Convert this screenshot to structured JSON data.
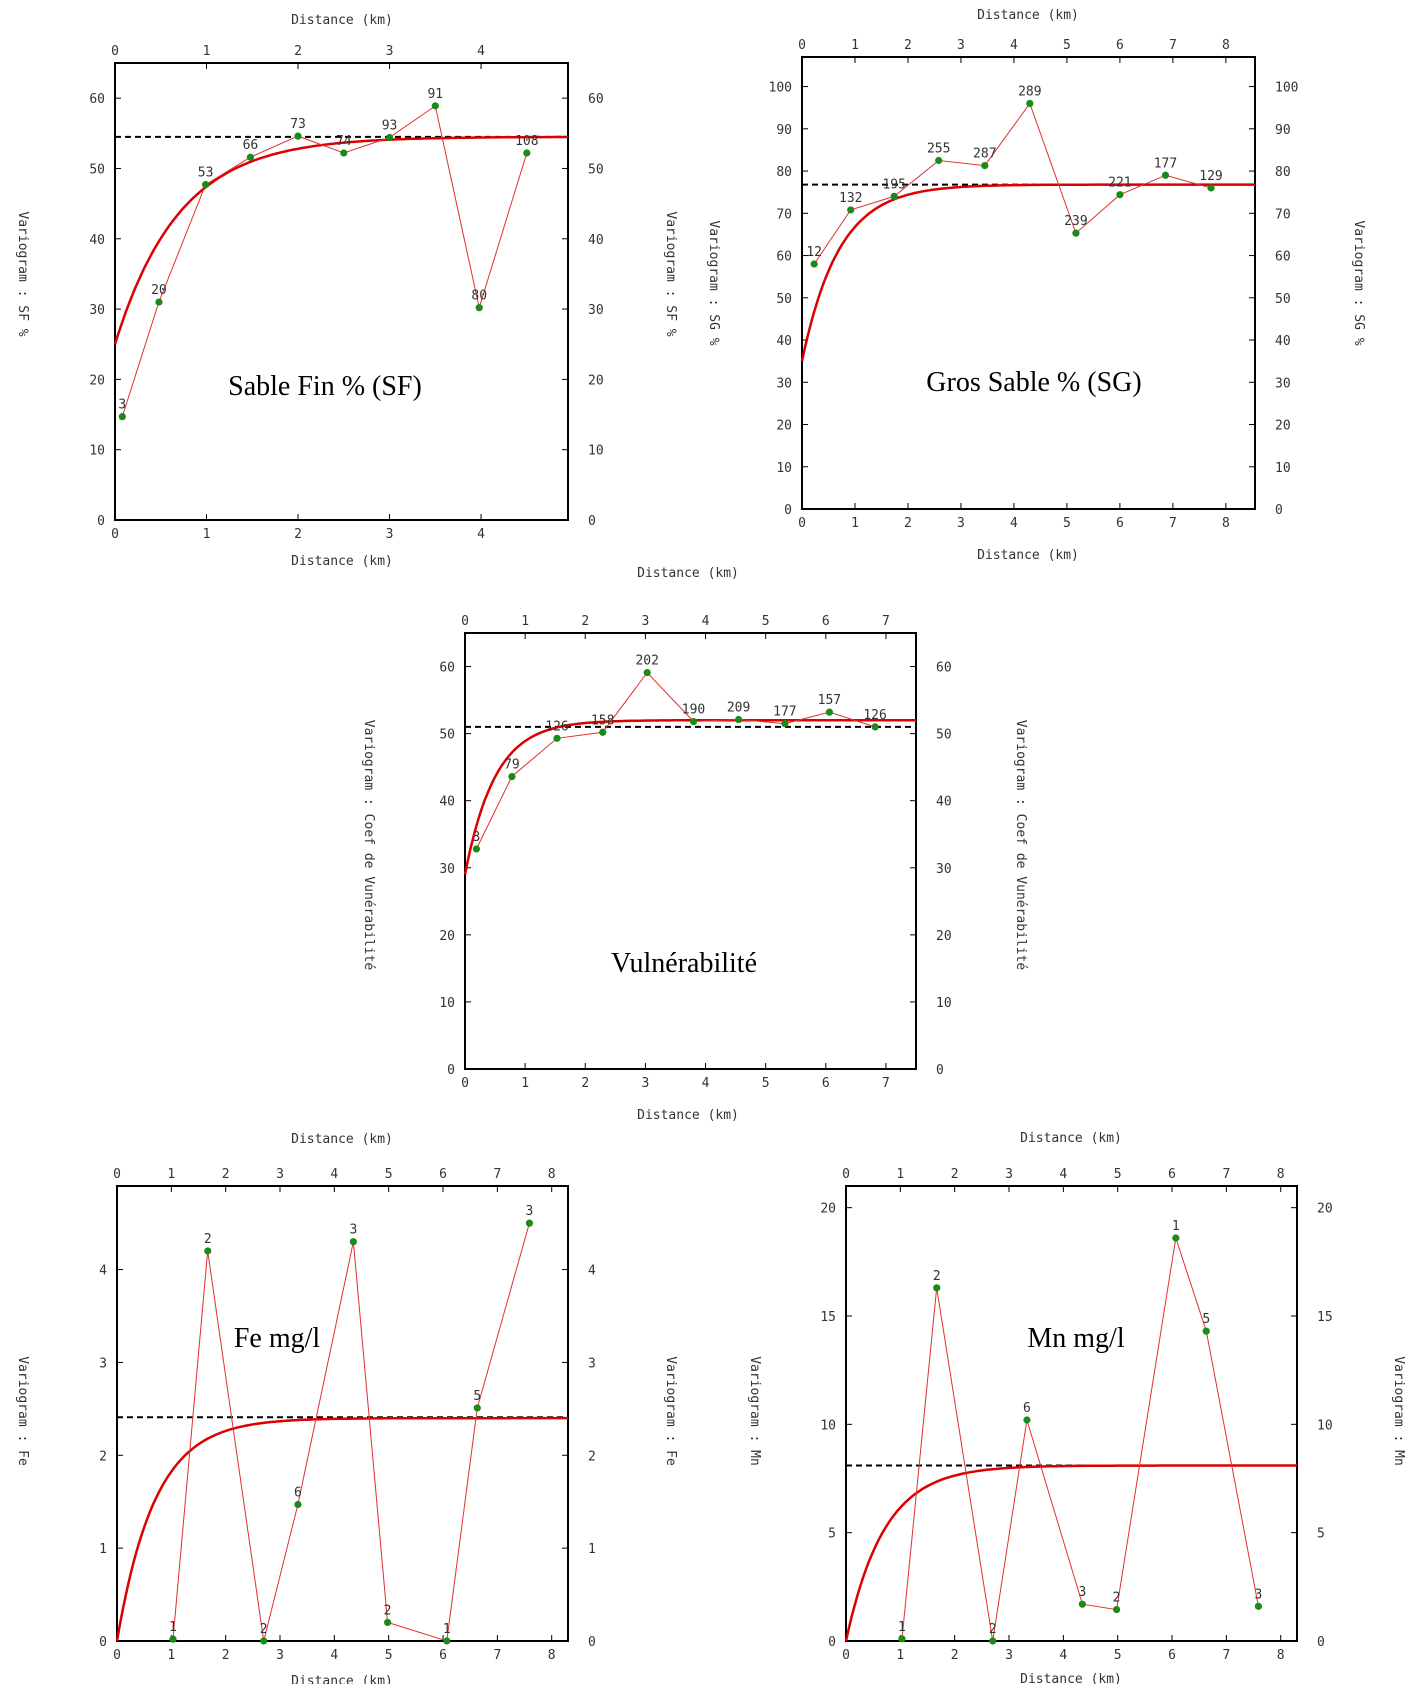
{
  "chart_data": [
    {
      "type": "scatter",
      "title": "Sable Fin % (SF)",
      "xlabel": "Distance (km)",
      "ylabel": "Variogram : SF %",
      "xlim": [
        0,
        4.95
      ],
      "ylim": [
        0,
        65
      ],
      "x_ticks": [
        0,
        1,
        2,
        3,
        4
      ],
      "y_ticks": [
        0,
        10,
        20,
        30,
        40,
        50,
        60
      ],
      "sill": 54.5,
      "model": {
        "nugget": 25,
        "sill": 54.5,
        "range": 0.7
      },
      "points": [
        {
          "x": 0.08,
          "y": 14.7,
          "label": "3"
        },
        {
          "x": 0.48,
          "y": 31.0,
          "label": "20"
        },
        {
          "x": 0.99,
          "y": 47.7,
          "label": "53"
        },
        {
          "x": 1.48,
          "y": 51.6,
          "label": "66"
        },
        {
          "x": 2.0,
          "y": 54.6,
          "label": "73"
        },
        {
          "x": 2.5,
          "y": 52.2,
          "label": "74"
        },
        {
          "x": 3.0,
          "y": 54.4,
          "label": "93"
        },
        {
          "x": 3.5,
          "y": 58.9,
          "label": "91"
        },
        {
          "x": 3.98,
          "y": 30.2,
          "label": "80"
        },
        {
          "x": 4.5,
          "y": 52.2,
          "label": "108"
        }
      ]
    },
    {
      "type": "scatter",
      "title": "Gros Sable % (SG)",
      "xlabel": "Distance (km)",
      "ylabel": "Variogram : SG %",
      "xlim": [
        0,
        8.55
      ],
      "ylim": [
        0,
        107
      ],
      "x_ticks": [
        0,
        1,
        2,
        3,
        4,
        5,
        6,
        7,
        8
      ],
      "y_ticks": [
        0,
        10,
        20,
        30,
        40,
        50,
        60,
        70,
        80,
        90,
        100
      ],
      "sill": 76.8,
      "model": {
        "nugget": 35,
        "sill": 76.8,
        "range": 0.7
      },
      "points": [
        {
          "x": 0.23,
          "y": 58.0,
          "label": "12"
        },
        {
          "x": 0.92,
          "y": 70.8,
          "label": "132"
        },
        {
          "x": 1.74,
          "y": 74.0,
          "label": "195"
        },
        {
          "x": 2.58,
          "y": 82.5,
          "label": "255"
        },
        {
          "x": 3.45,
          "y": 81.3,
          "label": "287"
        },
        {
          "x": 4.3,
          "y": 96.0,
          "label": "289"
        },
        {
          "x": 5.17,
          "y": 65.3,
          "label": "239"
        },
        {
          "x": 6.0,
          "y": 74.4,
          "label": "221"
        },
        {
          "x": 6.86,
          "y": 79.0,
          "label": "177"
        },
        {
          "x": 7.72,
          "y": 76.0,
          "label": "129"
        }
      ]
    },
    {
      "type": "scatter",
      "title": "Vulnérabilité",
      "xlabel": "Distance (km)",
      "ylabel": "Variogram : Coef de Vunérabilité",
      "xlim": [
        0,
        7.5
      ],
      "ylim": [
        0,
        65
      ],
      "x_ticks": [
        0,
        1,
        2,
        3,
        4,
        5,
        6,
        7
      ],
      "y_ticks": [
        0,
        10,
        20,
        30,
        40,
        50,
        60
      ],
      "sill": 51.0,
      "model": {
        "nugget": 29,
        "sill": 52.0,
        "range": 0.5
      },
      "points": [
        {
          "x": 0.19,
          "y": 32.8,
          "label": "3"
        },
        {
          "x": 0.78,
          "y": 43.6,
          "label": "79"
        },
        {
          "x": 1.53,
          "y": 49.3,
          "label": "126"
        },
        {
          "x": 2.29,
          "y": 50.2,
          "label": "158"
        },
        {
          "x": 3.03,
          "y": 59.1,
          "label": "202"
        },
        {
          "x": 3.8,
          "y": 51.8,
          "label": "190"
        },
        {
          "x": 4.55,
          "y": 52.1,
          "label": "209"
        },
        {
          "x": 5.32,
          "y": 51.5,
          "label": "177"
        },
        {
          "x": 6.06,
          "y": 53.2,
          "label": "157"
        },
        {
          "x": 6.82,
          "y": 51.0,
          "label": "126"
        }
      ]
    },
    {
      "type": "scatter",
      "title": "Fe mg/l",
      "xlabel": "Distance (km)",
      "ylabel": "Variogram : Fe",
      "xlim": [
        0,
        8.3
      ],
      "ylim": [
        0,
        4.9
      ],
      "x_ticks": [
        0,
        1,
        2,
        3,
        4,
        5,
        6,
        7,
        8
      ],
      "y_ticks": [
        0,
        1,
        2,
        3,
        4
      ],
      "sill": 2.41,
      "model": {
        "nugget": 0,
        "sill": 2.4,
        "range": 0.7
      },
      "points": [
        {
          "x": 1.03,
          "y": 0.02,
          "label": "1"
        },
        {
          "x": 1.67,
          "y": 4.2,
          "label": "2"
        },
        {
          "x": 2.7,
          "y": 0.0,
          "label": "2"
        },
        {
          "x": 3.33,
          "y": 1.47,
          "label": "6"
        },
        {
          "x": 4.35,
          "y": 4.3,
          "label": "3"
        },
        {
          "x": 4.98,
          "y": 0.2,
          "label": "2"
        },
        {
          "x": 6.07,
          "y": 0.0,
          "label": "1"
        },
        {
          "x": 6.63,
          "y": 2.51,
          "label": "5"
        },
        {
          "x": 7.59,
          "y": 4.5,
          "label": "3"
        }
      ]
    },
    {
      "type": "scatter",
      "title": "Mn mg/l",
      "xlabel": "Distance (km)",
      "ylabel": "Variogram : Mn",
      "xlim": [
        0,
        8.3
      ],
      "ylim": [
        0,
        21
      ],
      "x_ticks": [
        0,
        1,
        2,
        3,
        4,
        5,
        6,
        7,
        8
      ],
      "y_ticks": [
        0,
        5,
        10,
        15,
        20
      ],
      "sill": 8.1,
      "model": {
        "nugget": 0,
        "sill": 8.1,
        "range": 0.7
      },
      "points": [
        {
          "x": 1.03,
          "y": 0.1,
          "label": "1"
        },
        {
          "x": 1.67,
          "y": 16.3,
          "label": "2"
        },
        {
          "x": 2.7,
          "y": 0.0,
          "label": "2"
        },
        {
          "x": 3.33,
          "y": 10.2,
          "label": "6"
        },
        {
          "x": 4.35,
          "y": 1.7,
          "label": "3"
        },
        {
          "x": 4.98,
          "y": 1.45,
          "label": "2"
        },
        {
          "x": 6.07,
          "y": 18.6,
          "label": "1"
        },
        {
          "x": 6.63,
          "y": 14.3,
          "label": "5"
        },
        {
          "x": 7.59,
          "y": 1.6,
          "label": "3"
        }
      ]
    }
  ],
  "colors": {
    "experimental_line": "#e03030",
    "point": "#1a8a1a",
    "model_curve": "#dd0000",
    "sill_line": "#000000",
    "axis": "#000000",
    "text": "#333333"
  }
}
